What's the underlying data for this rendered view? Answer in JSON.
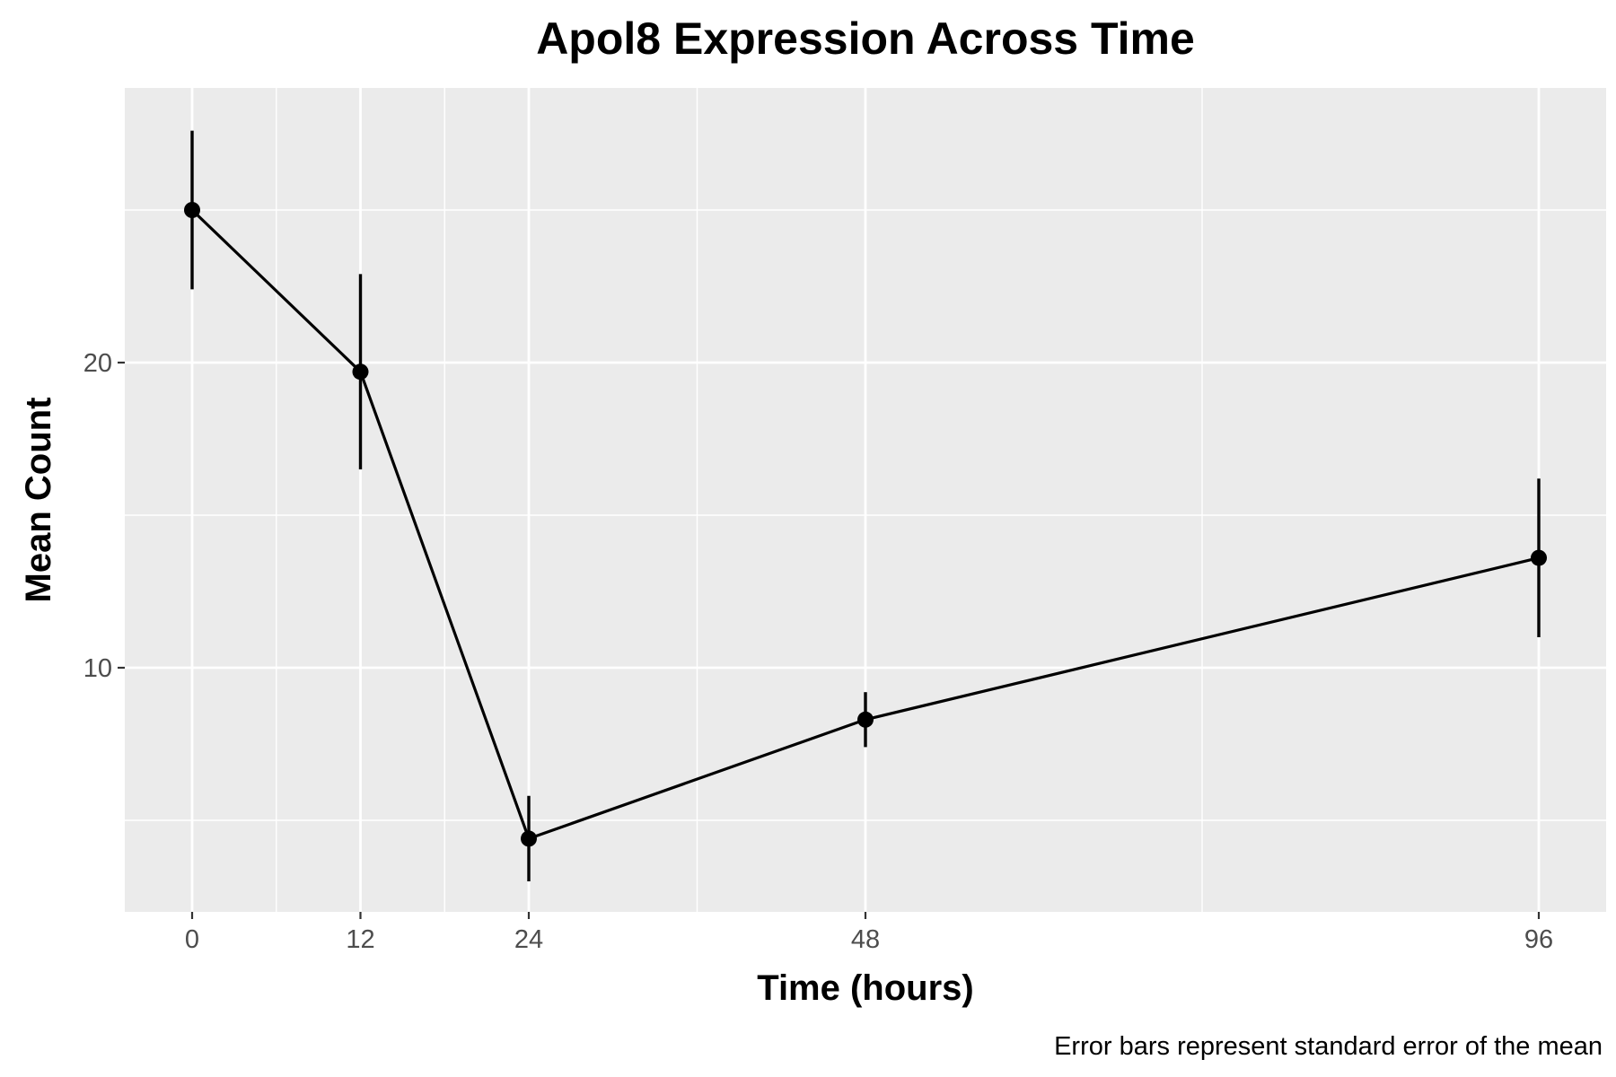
{
  "chart_data": {
    "type": "line",
    "title": "Apol8 Expression Across Time",
    "xlabel": "Time (hours)",
    "ylabel": "Mean Count",
    "caption": "Error bars represent standard error of the mean",
    "x_ticks": [
      0,
      12,
      24,
      48,
      96
    ],
    "y_ticks": [
      10,
      20
    ],
    "xlim": [
      -4.8,
      100.8
    ],
    "ylim": [
      2.0,
      29.0
    ],
    "grid": true,
    "series": [
      {
        "x": [
          0,
          12,
          24,
          48,
          96
        ],
        "y": [
          25.0,
          19.7,
          4.4,
          8.3,
          13.6
        ],
        "error": [
          2.6,
          3.2,
          1.4,
          0.9,
          2.6
        ]
      }
    ],
    "colors": {
      "panel_bg": "#ebebeb",
      "grid": "#ffffff",
      "line": "#000000"
    }
  }
}
